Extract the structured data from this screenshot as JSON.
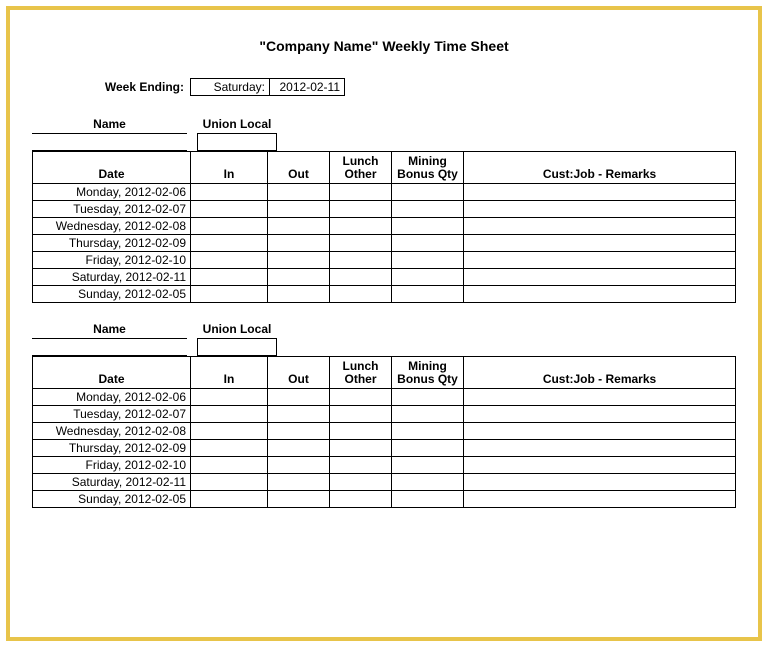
{
  "frame_color": "#e8c44a",
  "background_color": "#ffffff",
  "title": "\"Company Name\" Weekly Time Sheet",
  "week_ending": {
    "label": "Week Ending:",
    "day": "Saturday:",
    "date": "2012-02-11"
  },
  "labels": {
    "name": "Name",
    "union_local": "Union Local"
  },
  "columns": {
    "date": "Date",
    "in": "In",
    "out": "Out",
    "lunch": "Lunch Other",
    "bonus": "Mining Bonus Qty",
    "remarks": "Cust:Job - Remarks"
  },
  "days": [
    "Monday, 2012-02-06",
    "Tuesday, 2012-02-07",
    "Wednesday, 2012-02-08",
    "Thursday, 2012-02-09",
    "Friday, 2012-02-10",
    "Saturday, 2012-02-11",
    "Sunday, 2012-02-05"
  ],
  "column_widths": {
    "date": 158,
    "in": 77,
    "out": 62,
    "lunch": 62,
    "bonus": 72
  },
  "font_family": "Arial, sans-serif",
  "title_fontsize": 14,
  "body_fontsize": 12,
  "text_color": "#000000",
  "border_color": "#000000"
}
